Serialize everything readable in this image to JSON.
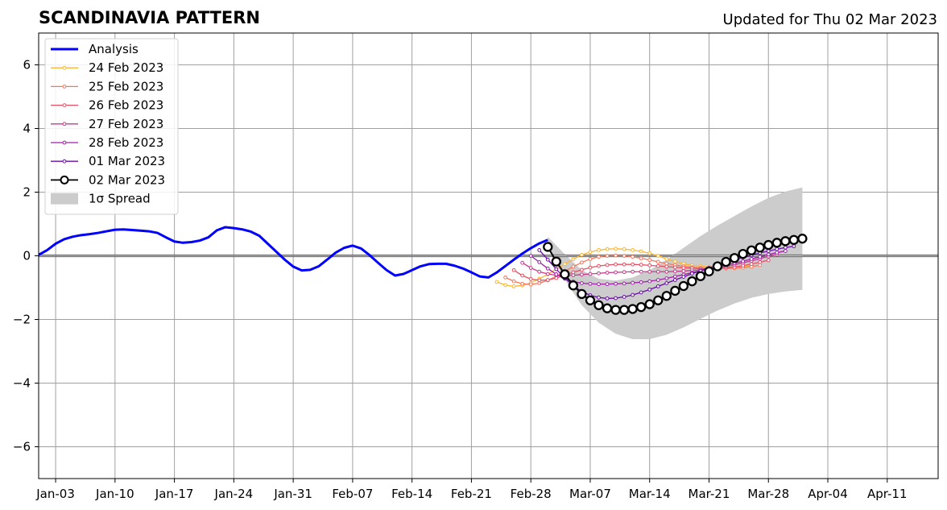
{
  "title_left": "SCANDINAVIA PATTERN",
  "title_right": "Updated for Thu 02 Mar 2023",
  "chart_data": {
    "type": "line",
    "title": "SCANDINAVIA PATTERN",
    "subtitle": "Updated for Thu 02 Mar 2023",
    "xlabel": "",
    "ylabel": "",
    "ylim": [
      -7,
      7
    ],
    "yticks": [
      -6,
      -4,
      -2,
      0,
      2,
      4,
      6
    ],
    "ytick_labels": [
      "−6",
      "−4",
      "−2",
      "0",
      "2",
      "4",
      "6"
    ],
    "xlim": [
      "2023-01-01",
      "2023-04-17"
    ],
    "xticks": [
      "2023-01-03",
      "2023-01-10",
      "2023-01-17",
      "2023-01-24",
      "2023-01-31",
      "2023-02-07",
      "2023-02-14",
      "2023-02-21",
      "2023-02-28",
      "2023-03-07",
      "2023-03-14",
      "2023-03-21",
      "2023-03-28",
      "2023-04-04",
      "2023-04-11"
    ],
    "xtick_labels": [
      "Jan-03",
      "Jan-10",
      "Jan-17",
      "Jan-24",
      "Jan-31",
      "Feb-07",
      "Feb-14",
      "Feb-21",
      "Feb-28",
      "Mar-07",
      "Mar-14",
      "Mar-21",
      "Mar-28",
      "Apr-04",
      "Apr-11"
    ],
    "grid": true,
    "legend_position": "top-left",
    "analysis": {
      "name": "Analysis",
      "color": "#0000ff",
      "x": [
        "2023-01-01",
        "2023-01-02",
        "2023-01-03",
        "2023-01-04",
        "2023-01-05",
        "2023-01-06",
        "2023-01-07",
        "2023-01-08",
        "2023-01-09",
        "2023-01-10",
        "2023-01-11",
        "2023-01-12",
        "2023-01-13",
        "2023-01-14",
        "2023-01-15",
        "2023-01-16",
        "2023-01-17",
        "2023-01-18",
        "2023-01-19",
        "2023-01-20",
        "2023-01-21",
        "2023-01-22",
        "2023-01-23",
        "2023-01-24",
        "2023-01-25",
        "2023-01-26",
        "2023-01-27",
        "2023-01-28",
        "2023-01-29",
        "2023-01-30",
        "2023-01-31",
        "2023-02-01",
        "2023-02-02",
        "2023-02-03",
        "2023-02-04",
        "2023-02-05",
        "2023-02-06",
        "2023-02-07",
        "2023-02-08",
        "2023-02-09",
        "2023-02-10",
        "2023-02-11",
        "2023-02-12",
        "2023-02-13",
        "2023-02-14",
        "2023-02-15",
        "2023-02-16",
        "2023-02-17",
        "2023-02-18",
        "2023-02-19",
        "2023-02-20",
        "2023-02-21",
        "2023-02-22",
        "2023-02-23",
        "2023-02-24",
        "2023-02-25",
        "2023-02-26",
        "2023-02-27",
        "2023-02-28",
        "2023-03-01",
        "2023-03-02"
      ],
      "y": [
        0.03,
        0.18,
        0.38,
        0.52,
        0.6,
        0.65,
        0.68,
        0.72,
        0.77,
        0.82,
        0.83,
        0.81,
        0.79,
        0.77,
        0.72,
        0.58,
        0.45,
        0.41,
        0.43,
        0.48,
        0.58,
        0.8,
        0.9,
        0.87,
        0.83,
        0.76,
        0.63,
        0.38,
        0.13,
        -0.12,
        -0.34,
        -0.46,
        -0.44,
        -0.33,
        -0.12,
        0.1,
        0.25,
        0.32,
        0.23,
        0.02,
        -0.22,
        -0.45,
        -0.62,
        -0.57,
        -0.45,
        -0.33,
        -0.26,
        -0.25,
        -0.25,
        -0.31,
        -0.4,
        -0.52,
        -0.65,
        -0.68,
        -0.52,
        -0.32,
        -0.12,
        0.07,
        0.24,
        0.39,
        0.5
      ]
    },
    "spread": {
      "name": "1σ Spread",
      "color": "#cccccc",
      "x": [
        "2023-03-02",
        "2023-03-04",
        "2023-03-06",
        "2023-03-08",
        "2023-03-10",
        "2023-03-12",
        "2023-03-14",
        "2023-03-16",
        "2023-03-18",
        "2023-03-20",
        "2023-03-22",
        "2023-03-24",
        "2023-03-26",
        "2023-03-28",
        "2023-03-30",
        "2023-04-01"
      ],
      "upper": [
        0.6,
        0.05,
        -0.45,
        -0.72,
        -0.78,
        -0.68,
        -0.45,
        -0.12,
        0.25,
        0.62,
        0.95,
        1.25,
        1.55,
        1.82,
        2.02,
        2.15
      ],
      "lower": [
        0.25,
        -0.75,
        -1.55,
        -2.1,
        -2.45,
        -2.62,
        -2.62,
        -2.48,
        -2.25,
        -1.98,
        -1.72,
        -1.5,
        -1.32,
        -1.2,
        -1.12,
        -1.07
      ]
    },
    "series": [
      {
        "name": "24 Feb 2023",
        "color": "#fdb52e",
        "style": "small-markers",
        "x": [
          "2023-02-24",
          "2023-02-25",
          "2023-02-26",
          "2023-02-27",
          "2023-02-28",
          "2023-03-01",
          "2023-03-02",
          "2023-03-03",
          "2023-03-04",
          "2023-03-05",
          "2023-03-06",
          "2023-03-07",
          "2023-03-08",
          "2023-03-09",
          "2023-03-10",
          "2023-03-11",
          "2023-03-12",
          "2023-03-13",
          "2023-03-14",
          "2023-03-15",
          "2023-03-16",
          "2023-03-17",
          "2023-03-18",
          "2023-03-19",
          "2023-03-20",
          "2023-03-21",
          "2023-03-22",
          "2023-03-23",
          "2023-03-24",
          "2023-03-25",
          "2023-03-26"
        ],
        "y": [
          -0.82,
          -0.92,
          -0.96,
          -0.93,
          -0.85,
          -0.72,
          -0.58,
          -0.42,
          -0.26,
          -0.11,
          0.03,
          0.12,
          0.18,
          0.21,
          0.22,
          0.21,
          0.18,
          0.14,
          0.08,
          0.0,
          -0.1,
          -0.18,
          -0.25,
          -0.3,
          -0.33,
          -0.35,
          -0.36,
          -0.36,
          -0.35,
          -0.34,
          -0.32
        ]
      },
      {
        "name": "25 Feb 2023",
        "color": "#f8765c",
        "style": "small-markers",
        "x": [
          "2023-02-25",
          "2023-02-26",
          "2023-02-27",
          "2023-02-28",
          "2023-03-01",
          "2023-03-02",
          "2023-03-03",
          "2023-03-04",
          "2023-03-05",
          "2023-03-06",
          "2023-03-07",
          "2023-03-08",
          "2023-03-09",
          "2023-03-10",
          "2023-03-11",
          "2023-03-12",
          "2023-03-13",
          "2023-03-14",
          "2023-03-15",
          "2023-03-16",
          "2023-03-17",
          "2023-03-18",
          "2023-03-19",
          "2023-03-20",
          "2023-03-21",
          "2023-03-22",
          "2023-03-23",
          "2023-03-24",
          "2023-03-25",
          "2023-03-26",
          "2023-03-27"
        ],
        "y": [
          -0.68,
          -0.8,
          -0.88,
          -0.9,
          -0.86,
          -0.77,
          -0.64,
          -0.49,
          -0.34,
          -0.21,
          -0.1,
          -0.03,
          0.0,
          0.01,
          0.0,
          -0.03,
          -0.08,
          -0.13,
          -0.19,
          -0.24,
          -0.29,
          -0.33,
          -0.36,
          -0.38,
          -0.4,
          -0.4,
          -0.4,
          -0.39,
          -0.37,
          -0.34,
          -0.29
        ]
      },
      {
        "name": "26 Feb 2023",
        "color": "#e55064",
        "style": "small-markers",
        "x": [
          "2023-02-26",
          "2023-02-27",
          "2023-02-28",
          "2023-03-01",
          "2023-03-02",
          "2023-03-03",
          "2023-03-04",
          "2023-03-05",
          "2023-03-06",
          "2023-03-07",
          "2023-03-08",
          "2023-03-09",
          "2023-03-10",
          "2023-03-11",
          "2023-03-12",
          "2023-03-13",
          "2023-03-14",
          "2023-03-15",
          "2023-03-16",
          "2023-03-17",
          "2023-03-18",
          "2023-03-19",
          "2023-03-20",
          "2023-03-21",
          "2023-03-22",
          "2023-03-23",
          "2023-03-24",
          "2023-03-25",
          "2023-03-26",
          "2023-03-27",
          "2023-03-28"
        ],
        "y": [
          -0.45,
          -0.62,
          -0.73,
          -0.77,
          -0.76,
          -0.7,
          -0.61,
          -0.52,
          -0.44,
          -0.37,
          -0.32,
          -0.29,
          -0.27,
          -0.27,
          -0.27,
          -0.28,
          -0.3,
          -0.32,
          -0.34,
          -0.36,
          -0.38,
          -0.39,
          -0.4,
          -0.4,
          -0.39,
          -0.37,
          -0.35,
          -0.31,
          -0.26,
          -0.2,
          -0.14
        ]
      },
      {
        "name": "27 Feb 2023",
        "color": "#c73a8d",
        "style": "small-markers",
        "x": [
          "2023-02-27",
          "2023-02-28",
          "2023-03-01",
          "2023-03-02",
          "2023-03-03",
          "2023-03-04",
          "2023-03-05",
          "2023-03-06",
          "2023-03-07",
          "2023-03-08",
          "2023-03-09",
          "2023-03-10",
          "2023-03-11",
          "2023-03-12",
          "2023-03-13",
          "2023-03-14",
          "2023-03-15",
          "2023-03-16",
          "2023-03-17",
          "2023-03-18",
          "2023-03-19",
          "2023-03-20",
          "2023-03-21",
          "2023-03-22",
          "2023-03-23",
          "2023-03-24",
          "2023-03-25",
          "2023-03-26",
          "2023-03-27",
          "2023-03-28",
          "2023-03-29"
        ],
        "y": [
          -0.22,
          -0.38,
          -0.5,
          -0.57,
          -0.61,
          -0.62,
          -0.61,
          -0.59,
          -0.57,
          -0.55,
          -0.53,
          -0.52,
          -0.51,
          -0.5,
          -0.5,
          -0.5,
          -0.5,
          -0.5,
          -0.49,
          -0.48,
          -0.46,
          -0.44,
          -0.41,
          -0.37,
          -0.33,
          -0.28,
          -0.22,
          -0.16,
          -0.09,
          -0.02,
          0.04
        ]
      },
      {
        "name": "28 Feb 2023",
        "color": "#a020a8",
        "style": "small-markers",
        "x": [
          "2023-02-28",
          "2023-03-01",
          "2023-03-02",
          "2023-03-03",
          "2023-03-04",
          "2023-03-05",
          "2023-03-06",
          "2023-03-07",
          "2023-03-08",
          "2023-03-09",
          "2023-03-10",
          "2023-03-11",
          "2023-03-12",
          "2023-03-13",
          "2023-03-14",
          "2023-03-15",
          "2023-03-16",
          "2023-03-17",
          "2023-03-18",
          "2023-03-19",
          "2023-03-20",
          "2023-03-21",
          "2023-03-22",
          "2023-03-23",
          "2023-03-24",
          "2023-03-25",
          "2023-03-26",
          "2023-03-27",
          "2023-03-28",
          "2023-03-29",
          "2023-03-30"
        ],
        "y": [
          0.0,
          -0.2,
          -0.4,
          -0.58,
          -0.72,
          -0.81,
          -0.86,
          -0.88,
          -0.89,
          -0.89,
          -0.88,
          -0.87,
          -0.85,
          -0.83,
          -0.8,
          -0.76,
          -0.71,
          -0.65,
          -0.59,
          -0.53,
          -0.47,
          -0.41,
          -0.35,
          -0.29,
          -0.23,
          -0.17,
          -0.1,
          -0.03,
          0.04,
          0.1,
          0.15
        ]
      },
      {
        "name": "01 Mar 2023",
        "color": "#6a0aa8",
        "style": "small-markers",
        "x": [
          "2023-03-01",
          "2023-03-02",
          "2023-03-03",
          "2023-03-04",
          "2023-03-05",
          "2023-03-06",
          "2023-03-07",
          "2023-03-08",
          "2023-03-09",
          "2023-03-10",
          "2023-03-11",
          "2023-03-12",
          "2023-03-13",
          "2023-03-14",
          "2023-03-15",
          "2023-03-16",
          "2023-03-17",
          "2023-03-18",
          "2023-03-19",
          "2023-03-20",
          "2023-03-21",
          "2023-03-22",
          "2023-03-23",
          "2023-03-24",
          "2023-03-25",
          "2023-03-26",
          "2023-03-27",
          "2023-03-28",
          "2023-03-29",
          "2023-03-30",
          "2023-03-31"
        ],
        "y": [
          0.18,
          -0.12,
          -0.42,
          -0.7,
          -0.94,
          -1.12,
          -1.24,
          -1.31,
          -1.34,
          -1.33,
          -1.29,
          -1.23,
          -1.15,
          -1.06,
          -0.96,
          -0.86,
          -0.76,
          -0.66,
          -0.56,
          -0.47,
          -0.38,
          -0.29,
          -0.21,
          -0.13,
          -0.05,
          0.02,
          0.09,
          0.15,
          0.21,
          0.26,
          0.3
        ]
      },
      {
        "name": "02 Mar 2023",
        "color": "#000000",
        "style": "large-markers",
        "x": [
          "2023-03-02",
          "2023-03-03",
          "2023-03-04",
          "2023-03-05",
          "2023-03-06",
          "2023-03-07",
          "2023-03-08",
          "2023-03-09",
          "2023-03-10",
          "2023-03-11",
          "2023-03-12",
          "2023-03-13",
          "2023-03-14",
          "2023-03-15",
          "2023-03-16",
          "2023-03-17",
          "2023-03-18",
          "2023-03-19",
          "2023-03-20",
          "2023-03-21",
          "2023-03-22",
          "2023-03-23",
          "2023-03-24",
          "2023-03-25",
          "2023-03-26",
          "2023-03-27",
          "2023-03-28",
          "2023-03-29",
          "2023-03-30",
          "2023-03-31",
          "2023-04-01"
        ],
        "y": [
          0.28,
          -0.18,
          -0.58,
          -0.93,
          -1.2,
          -1.4,
          -1.55,
          -1.65,
          -1.7,
          -1.7,
          -1.67,
          -1.61,
          -1.52,
          -1.4,
          -1.26,
          -1.1,
          -0.95,
          -0.8,
          -0.64,
          -0.49,
          -0.33,
          -0.19,
          -0.07,
          0.06,
          0.17,
          0.26,
          0.34,
          0.41,
          0.46,
          0.5,
          0.54
        ]
      }
    ],
    "legend": [
      {
        "label": "Analysis",
        "kind": "analysis",
        "color": "#0000ff"
      },
      {
        "label": "24 Feb 2023",
        "kind": "small",
        "color": "#fdb52e"
      },
      {
        "label": "25 Feb 2023",
        "kind": "small",
        "color": "#f8765c"
      },
      {
        "label": "26 Feb 2023",
        "kind": "small",
        "color": "#e55064"
      },
      {
        "label": "27 Feb 2023",
        "kind": "small",
        "color": "#c73a8d"
      },
      {
        "label": "28 Feb 2023",
        "kind": "small",
        "color": "#a020a8"
      },
      {
        "label": "01 Mar 2023",
        "kind": "small",
        "color": "#6a0aa8"
      },
      {
        "label": "02 Mar 2023",
        "kind": "large",
        "color": "#000000"
      },
      {
        "label": "1σ Spread",
        "kind": "patch",
        "color": "#cccccc"
      }
    ]
  }
}
